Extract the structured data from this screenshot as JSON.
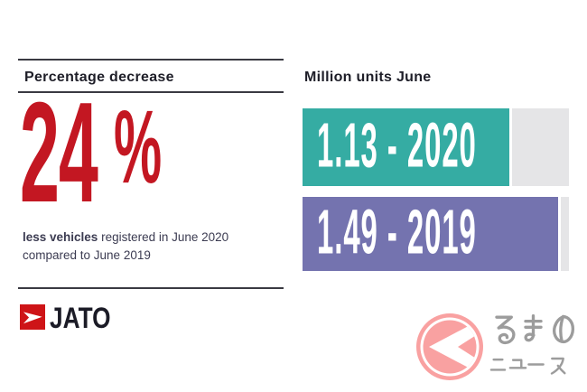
{
  "page": {
    "background": "#ffffff"
  },
  "left_panel": {
    "heading": "Percentage decrease",
    "stat": {
      "value": "24",
      "unit": "%",
      "color": "#c31722"
    },
    "description": {
      "bold": "less vehicles",
      "rest": " registered in June 2020 compared to June 2019"
    },
    "brand": {
      "name": "JATO",
      "logo_color": "#ce1417",
      "text_color": "#1b1b26"
    }
  },
  "right_panel": {
    "heading": "Million units June"
  },
  "chart_data": {
    "type": "bar",
    "orientation": "horizontal",
    "title": "Million units June",
    "unit": "million units",
    "categories": [
      "2020",
      "2019"
    ],
    "values": [
      1.13,
      1.49
    ],
    "xlim": [
      0,
      1.55
    ],
    "grid": false,
    "legend": false,
    "track_color": "#e5e5e7",
    "bars": [
      {
        "label": "1.13 - 2020",
        "value": 1.13,
        "year": "2020",
        "color": "#35aca3",
        "width_pct": 77.5
      },
      {
        "label": "1.49 - 2019",
        "value": 1.49,
        "year": "2019",
        "color": "#7473af",
        "width_pct": 95.8
      }
    ]
  },
  "watermark": {
    "text": "くるまのニュース",
    "circle_char": "く",
    "line1": "るまの",
    "line2": "ニュース",
    "pink": "#f9a1a1",
    "gray": "#9c9c9c"
  }
}
